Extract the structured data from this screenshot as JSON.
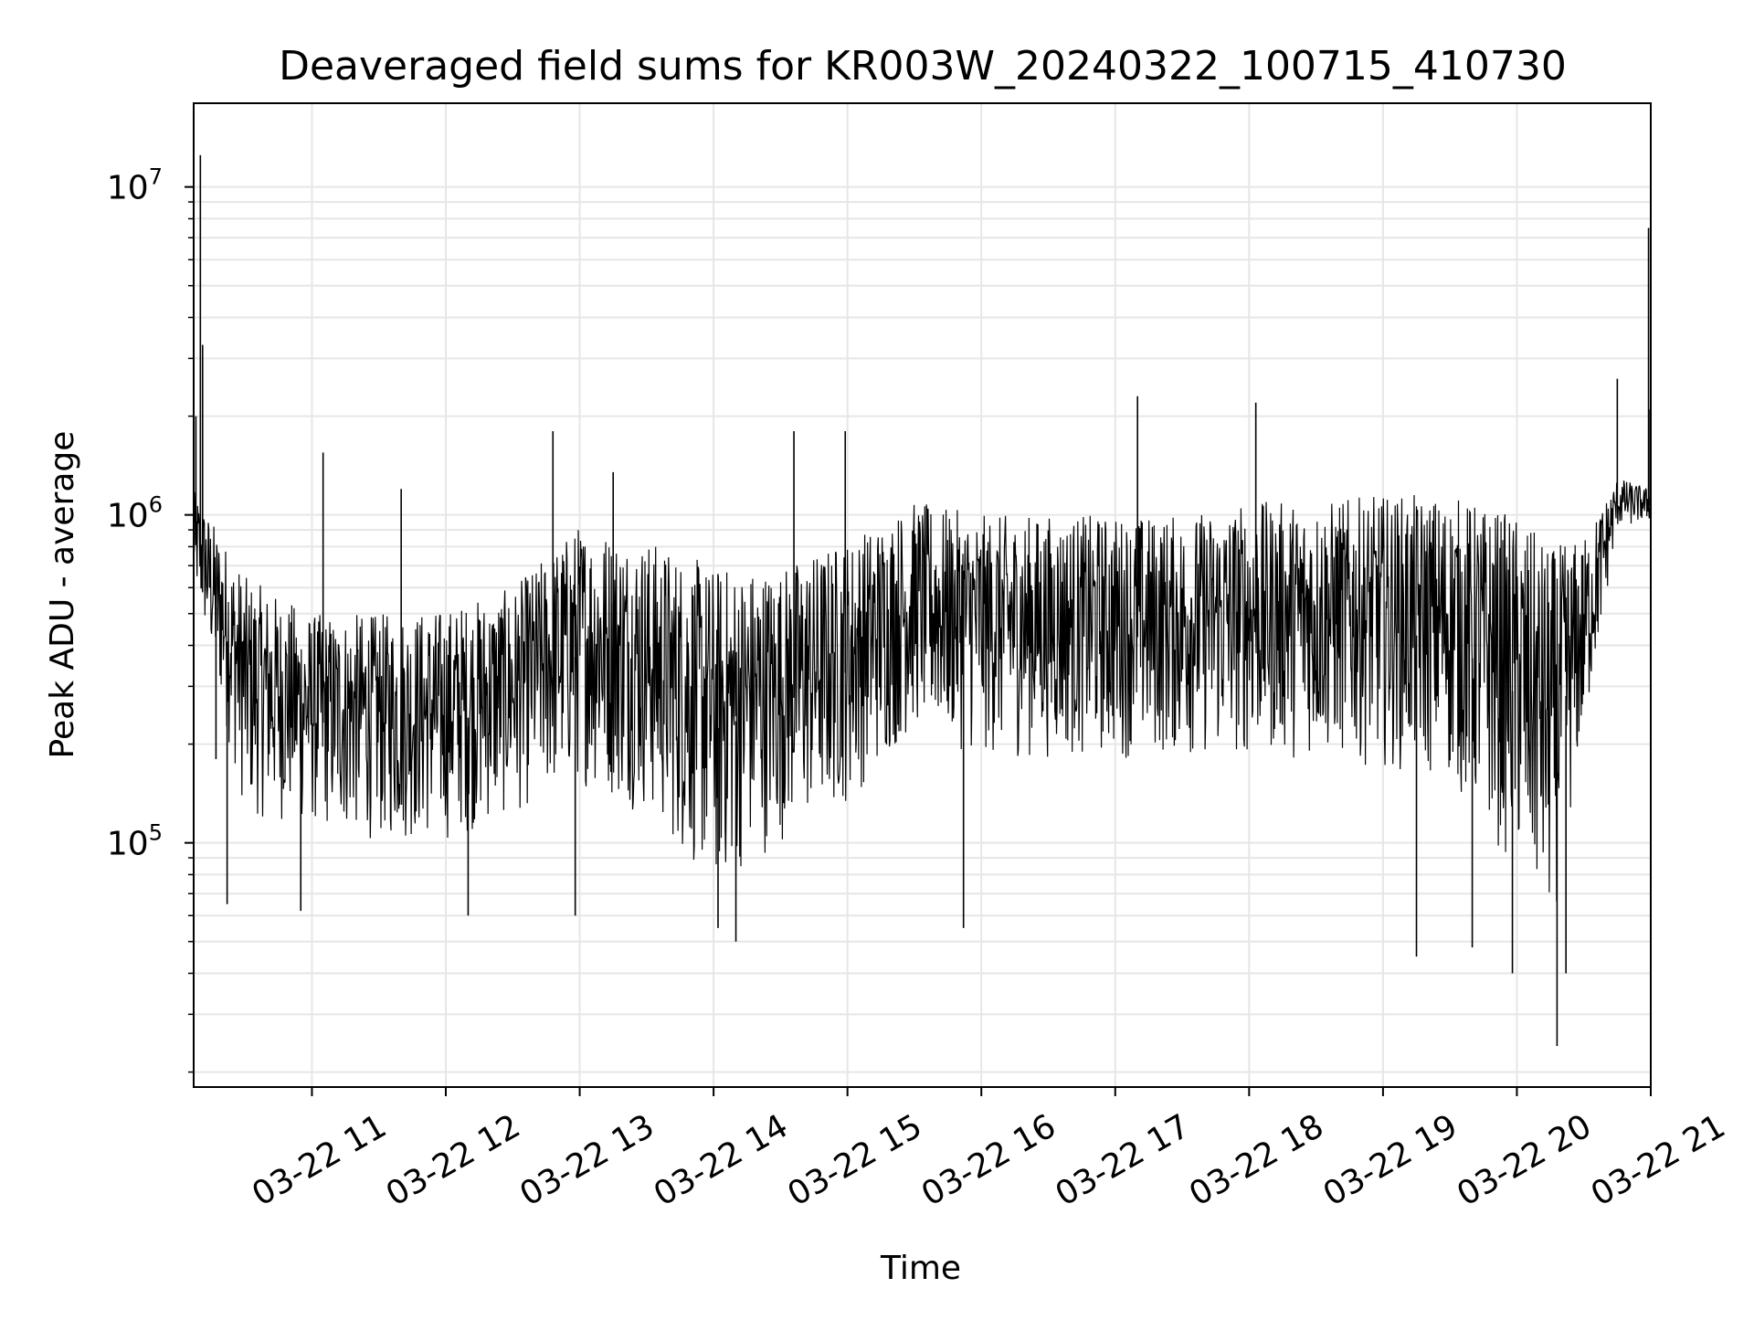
{
  "chart_data": {
    "type": "line",
    "title": "Deaveraged field sums for KR003W_20240322_100715_410730",
    "xlabel": "Time",
    "ylabel": "Peak ADU - average",
    "x_axis": {
      "kind": "datetime",
      "range": [
        "2024-03-22 10:07",
        "2024-03-22 21:00"
      ],
      "ticks": [
        "2024-03-22 11:00",
        "2024-03-22 12:00",
        "2024-03-22 13:00",
        "2024-03-22 14:00",
        "2024-03-22 15:00",
        "2024-03-22 16:00",
        "2024-03-22 17:00",
        "2024-03-22 18:00",
        "2024-03-22 19:00",
        "2024-03-22 20:00",
        "2024-03-22 21:00"
      ],
      "tick_labels": [
        "03-22 11",
        "03-22 12",
        "03-22 13",
        "03-22 14",
        "03-22 15",
        "03-22 16",
        "03-22 17",
        "03-22 18",
        "03-22 19",
        "03-22 20",
        "03-22 21"
      ]
    },
    "y_axis": {
      "scale": "log",
      "range": [
        18000,
        18000000
      ],
      "major_ticks": [
        100000,
        1000000,
        10000000
      ],
      "tick_labels": [
        {
          "base": "10",
          "exp": "5"
        },
        {
          "base": "10",
          "exp": "6"
        },
        {
          "base": "10",
          "exp": "7"
        }
      ]
    },
    "grid": true,
    "line_color": "#000000",
    "grid_color": "#e6e6e6",
    "envelope": {
      "x": [
        "2024-03-22 10:07",
        "2024-03-22 10:30",
        "2024-03-22 11:00",
        "2024-03-22 11:30",
        "2024-03-22 12:00",
        "2024-03-22 12:30",
        "2024-03-22 13:00",
        "2024-03-22 13:30",
        "2024-03-22 14:00",
        "2024-03-22 14:30",
        "2024-03-22 15:00",
        "2024-03-22 15:30",
        "2024-03-22 16:00",
        "2024-03-22 16:30",
        "2024-03-22 17:00",
        "2024-03-22 17:30",
        "2024-03-22 18:00",
        "2024-03-22 18:30",
        "2024-03-22 19:00",
        "2024-03-22 19:30",
        "2024-03-22 20:00",
        "2024-03-22 20:15",
        "2024-03-22 20:30",
        "2024-03-22 20:45",
        "2024-03-22 21:00"
      ],
      "upper": [
        1200000,
        650000,
        500000,
        500000,
        520000,
        600000,
        950000,
        850000,
        700000,
        700000,
        850000,
        1100000,
        1000000,
        1000000,
        1000000,
        1000000,
        1100000,
        1100000,
        1150000,
        1150000,
        1000000,
        800000,
        850000,
        1300000,
        1200000
      ],
      "lower": [
        600000,
        120000,
        110000,
        100000,
        100000,
        120000,
        150000,
        120000,
        70000,
        100000,
        130000,
        220000,
        180000,
        180000,
        180000,
        180000,
        180000,
        180000,
        170000,
        150000,
        80000,
        50000,
        200000,
        900000,
        950000
      ]
    },
    "spikes": [
      {
        "x": "2024-03-22 10:08",
        "y": 2000000
      },
      {
        "x": "2024-03-22 10:10",
        "y": 12500000
      },
      {
        "x": "2024-03-22 10:11",
        "y": 3300000
      },
      {
        "x": "2024-03-22 10:17",
        "y": 180000
      },
      {
        "x": "2024-03-22 10:22",
        "y": 65000
      },
      {
        "x": "2024-03-22 10:55",
        "y": 62000
      },
      {
        "x": "2024-03-22 11:05",
        "y": 1550000
      },
      {
        "x": "2024-03-22 11:40",
        "y": 1200000
      },
      {
        "x": "2024-03-22 12:10",
        "y": 60000
      },
      {
        "x": "2024-03-22 12:48",
        "y": 1800000
      },
      {
        "x": "2024-03-22 12:58",
        "y": 60000
      },
      {
        "x": "2024-03-22 13:15",
        "y": 1350000
      },
      {
        "x": "2024-03-22 14:02",
        "y": 55000
      },
      {
        "x": "2024-03-22 14:10",
        "y": 50000
      },
      {
        "x": "2024-03-22 14:36",
        "y": 1800000
      },
      {
        "x": "2024-03-22 14:59",
        "y": 1800000
      },
      {
        "x": "2024-03-22 15:52",
        "y": 55000
      },
      {
        "x": "2024-03-22 17:10",
        "y": 2300000
      },
      {
        "x": "2024-03-22 18:03",
        "y": 2200000
      },
      {
        "x": "2024-03-22 19:15",
        "y": 45000
      },
      {
        "x": "2024-03-22 19:40",
        "y": 48000
      },
      {
        "x": "2024-03-22 19:58",
        "y": 40000
      },
      {
        "x": "2024-03-22 20:18",
        "y": 24000
      },
      {
        "x": "2024-03-22 20:22",
        "y": 40000
      },
      {
        "x": "2024-03-22 20:45",
        "y": 2600000
      },
      {
        "x": "2024-03-22 20:59",
        "y": 7500000
      },
      {
        "x": "2024-03-22 21:00",
        "y": 2100000
      }
    ]
  }
}
